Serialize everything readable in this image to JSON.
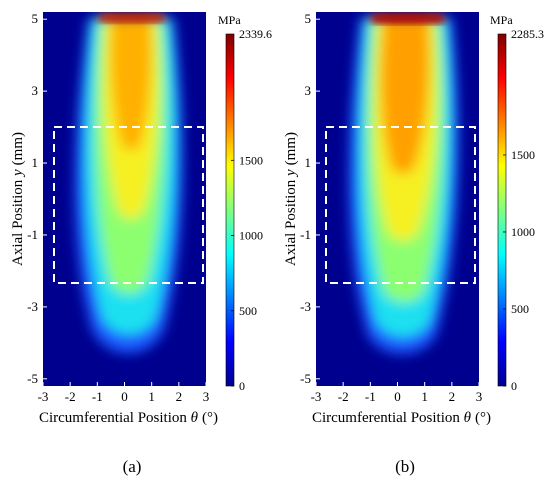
{
  "panels": [
    {
      "caption": "(a)",
      "xlabel_text": "Circumferential Position",
      "xlabel_sym": "θ",
      "xlabel_unit": "(°)",
      "ylabel_text": "Axial Position",
      "ylabel_sym": "y",
      "ylabel_unit": "(mm)",
      "colorbar_unit": "MPa",
      "colorbar_max_label": "2339.6",
      "colorbar_ticks": [
        "0",
        "500",
        "1000",
        "1500"
      ]
    },
    {
      "caption": "(b)",
      "xlabel_text": "Circumferential Position",
      "xlabel_sym": "θ",
      "xlabel_unit": "(°)",
      "ylabel_text": "Axial Position",
      "ylabel_sym": "y",
      "ylabel_unit": "(mm)",
      "colorbar_unit": "MPa",
      "colorbar_max_label": "2285.3",
      "colorbar_ticks": [
        "0",
        "500",
        "1000",
        "1500"
      ]
    }
  ],
  "chart_data": [
    {
      "type": "heatmap",
      "xlim": [
        -3,
        3
      ],
      "ylim": [
        -5.2,
        5.2
      ],
      "xticks": [
        "-3",
        "-2",
        "-1",
        "0",
        "1",
        "2",
        "3"
      ],
      "yticks": [
        "-5",
        "-3",
        "-1",
        "1",
        "3",
        "5"
      ],
      "colorbar_range": [
        0,
        2339.6
      ],
      "colormap": "jet",
      "background_color": "#00008f",
      "peak_value": 2339.6,
      "dashed_box": {
        "x": [
          -2.85,
          2.85
        ],
        "y": [
          -2.1,
          2.1
        ]
      }
    },
    {
      "type": "heatmap",
      "xlim": [
        -3,
        3
      ],
      "ylim": [
        -5.2,
        5.2
      ],
      "xticks": [
        "-3",
        "-2",
        "-1",
        "0",
        "1",
        "2",
        "3"
      ],
      "yticks": [
        "-5",
        "-3",
        "-1",
        "1",
        "3",
        "5"
      ],
      "colorbar_range": [
        0,
        2285.3
      ],
      "colormap": "jet",
      "background_color": "#00008f",
      "peak_value": 2285.3,
      "dashed_box": {
        "x": [
          -2.85,
          2.85
        ],
        "y": [
          -2.1,
          2.1
        ]
      }
    }
  ]
}
